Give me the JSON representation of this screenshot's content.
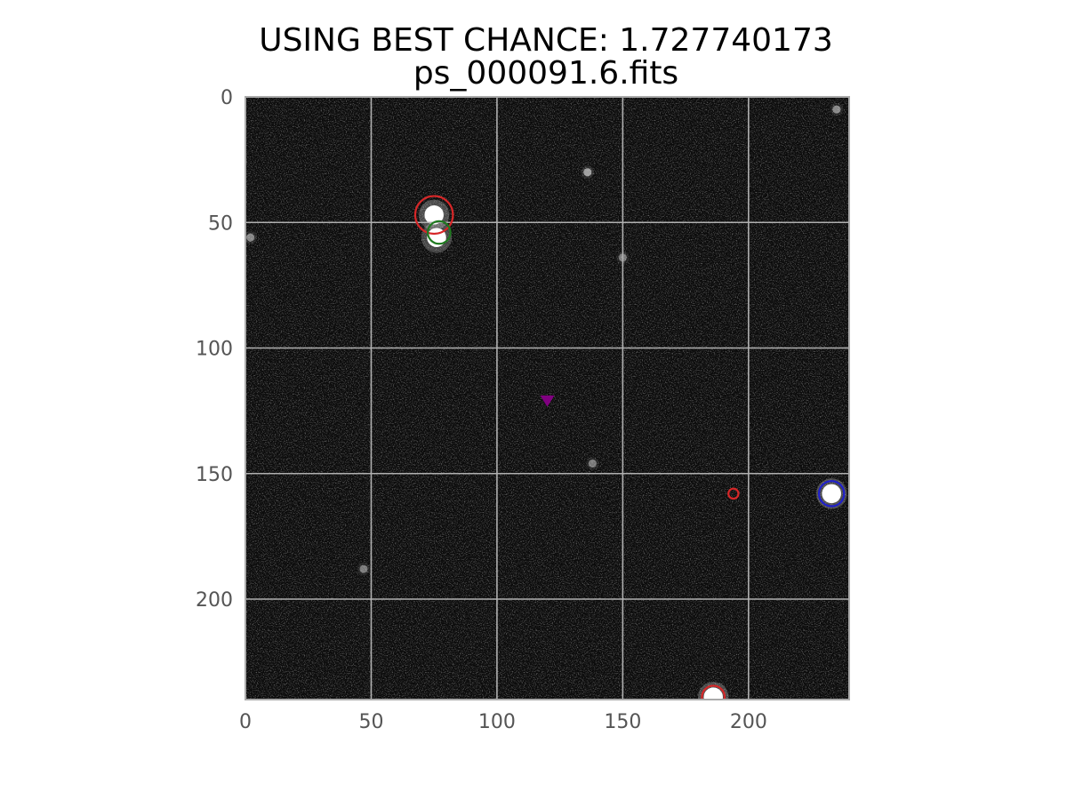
{
  "chart_data": {
    "type": "heatmap",
    "title": "USING BEST CHANCE: 1.727740173",
    "subtitle": "ps_000091.6.fits",
    "xlabel": "",
    "ylabel": "",
    "xlim": [
      0,
      240
    ],
    "ylim": [
      240,
      0
    ],
    "y_inverted": true,
    "grid": true,
    "colormap": "gray",
    "xticks": [
      0,
      50,
      100,
      150,
      200
    ],
    "yticks": [
      0,
      50,
      100,
      150,
      200
    ],
    "bright_sources": [
      {
        "x": 75,
        "y": 47,
        "brightness": 1.0
      },
      {
        "x": 76,
        "y": 56,
        "brightness": 0.9
      },
      {
        "x": 233,
        "y": 158,
        "brightness": 1.0
      },
      {
        "x": 186,
        "y": 239,
        "brightness": 1.0
      },
      {
        "x": 136,
        "y": 30,
        "brightness": 0.45
      },
      {
        "x": 2,
        "y": 56,
        "brightness": 0.35
      },
      {
        "x": 47,
        "y": 188,
        "brightness": 0.3
      },
      {
        "x": 150,
        "y": 64,
        "brightness": 0.3
      },
      {
        "x": 235,
        "y": 5,
        "brightness": 0.35
      },
      {
        "x": 138,
        "y": 146,
        "brightness": 0.3
      }
    ],
    "circles": [
      {
        "x": 75,
        "y": 47,
        "r": 7.5,
        "color": "#d62728"
      },
      {
        "x": 77,
        "y": 54,
        "r": 4.5,
        "color": "#1f7a1f"
      },
      {
        "x": 194,
        "y": 158,
        "r": 2.0,
        "color": "#d62728"
      },
      {
        "x": 233,
        "y": 158,
        "r": 5.0,
        "color": "#1f1fcc"
      },
      {
        "x": 186,
        "y": 239,
        "r": 4.5,
        "color": "#d62728"
      }
    ],
    "markers": [
      {
        "x": 120,
        "y": 121,
        "shape": "triangle-down",
        "color": "#800080"
      }
    ]
  }
}
